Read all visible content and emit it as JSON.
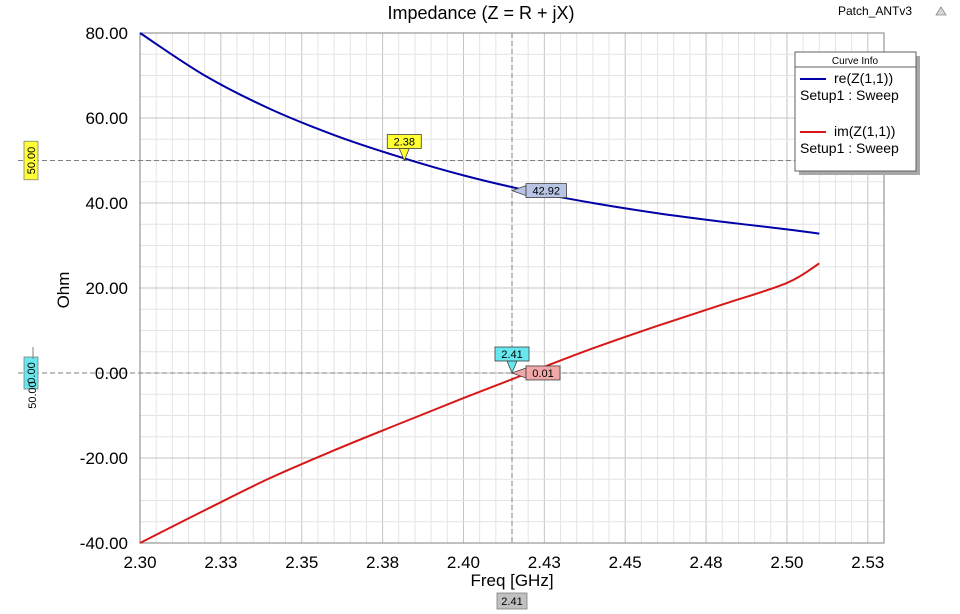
{
  "project_name": "Patch_ANTv3",
  "chart_data": {
    "type": "line",
    "title": "Impedance (Z = R + jX)",
    "xlabel": "Freq [GHz]",
    "ylabel": "Ohm",
    "xlim": [
      2.3,
      2.53
    ],
    "ylim": [
      -40,
      80
    ],
    "x_ticks": [
      2.3,
      2.325,
      2.35,
      2.375,
      2.4,
      2.425,
      2.45,
      2.475,
      2.5,
      2.525
    ],
    "x_tick_labels": [
      "2.30",
      "2.33",
      "2.35",
      "2.38",
      "2.40",
      "2.43",
      "2.45",
      "2.48",
      "2.50",
      "2.53"
    ],
    "y_ticks": [
      -40,
      -20,
      0,
      20,
      40,
      60,
      80
    ],
    "y_tick_labels": [
      "-40.00",
      "-20.00",
      "0.00",
      "20.00",
      "40.00",
      "60.00",
      "80.00"
    ],
    "grid": true,
    "legend_position": "top-right",
    "legend_title": "Curve Info",
    "series": [
      {
        "name": "re(Z(1,1))",
        "setup": "Setup1 : Sweep",
        "color": "#0000a8",
        "x": [
          2.3,
          2.32,
          2.34,
          2.36,
          2.38,
          2.4,
          2.42,
          2.44,
          2.46,
          2.48,
          2.5,
          2.51
        ],
        "y": [
          80.0,
          70.0,
          62.2,
          56.0,
          50.9,
          46.5,
          42.9,
          40.0,
          37.6,
          35.6,
          33.8,
          32.8
        ]
      },
      {
        "name": "im(Z(1,1))",
        "setup": "Setup1 : Sweep",
        "color": "#d81818",
        "x": [
          2.3,
          2.32,
          2.34,
          2.36,
          2.38,
          2.4,
          2.42,
          2.44,
          2.46,
          2.48,
          2.5,
          2.51
        ],
        "y": [
          -40.0,
          -32.3,
          -24.8,
          -18.2,
          -12.0,
          -5.9,
          0.0,
          5.8,
          11.1,
          16.1,
          21.2,
          25.8
        ]
      }
    ],
    "markers": [
      {
        "label": "2.38",
        "x": 2.3817,
        "y": 50.0,
        "color": "#ffff33",
        "series": "re(Z(1,1))"
      },
      {
        "label": "42.92",
        "x": 2.415,
        "y": 42.92,
        "color": "#b8c4e4",
        "series": "re(Z(1,1))"
      },
      {
        "label": "2.41",
        "x": 2.415,
        "y": 0.0,
        "color": "#66e8ee",
        "series": "im(Z(1,1))"
      },
      {
        "label": "0.01",
        "x": 2.415,
        "y": 0.01,
        "color": "#f0a8a8",
        "series": "im(Z(1,1))"
      }
    ],
    "crosshair": {
      "x": 2.415,
      "ys": [
        50.0,
        0.0
      ]
    },
    "axis_markers": {
      "x_bottom": {
        "label": "2.41",
        "color": "#c0c0c0"
      },
      "y_left": [
        {
          "label": "50.00",
          "color": "#ffff33"
        },
        {
          "label": "0.00",
          "color": "#66e8ee"
        }
      ],
      "y_left_extra": "50.00"
    }
  }
}
